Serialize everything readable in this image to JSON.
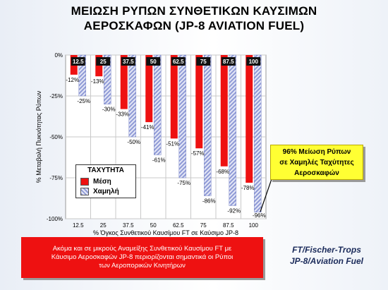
{
  "title": {
    "line1": "ΜΕΙΩΣΗ ΡΥΠΩΝ ΣΥΝΘΕΤΙΚΩΝ ΚΑΥΣΙΜΩΝ",
    "line2": "ΑΕΡΟΣΚΑΦΩΝ (JP-8 AVIATION FUEL)"
  },
  "chart_data": {
    "type": "bar",
    "categories": [
      "12.5",
      "25",
      "37.5",
      "50",
      "62.5",
      "75",
      "87.5",
      "100"
    ],
    "series": [
      {
        "name": "Μέση",
        "values": [
          -12,
          -13,
          -33,
          -41,
          -51,
          -57,
          -68,
          -78
        ],
        "labels": [
          "-12%",
          "-13%",
          "-33%",
          "-41%",
          "-51%",
          "-57%",
          "-68%",
          "-78%"
        ]
      },
      {
        "name": "Χαμηλή",
        "values": [
          -25,
          -30,
          -50,
          -61,
          -75,
          -86,
          -92,
          -96
        ],
        "labels": [
          "-25%",
          "-30%",
          "-50%",
          "-61%",
          "-75%",
          "-86%",
          "-92%",
          "-96%"
        ]
      }
    ],
    "top_labels": [
      "12.5",
      "25",
      "37.5",
      "50",
      "62.5",
      "75",
      "87.5",
      "100"
    ],
    "xlabel": "% Όγκος Συνθετικού Καυσίμου FT σε Καύσιμο JP-8",
    "ylabel": "% Μεταβολή Πυκνότητας Ρύπων",
    "ylim": [
      -100,
      0
    ],
    "yticks": [
      "0%",
      "-25%",
      "-50%",
      "-75%",
      "-100%"
    ],
    "ytick_values": [
      0,
      -25,
      -50,
      -75,
      -100
    ],
    "legend_title": "ΤΑΧΥΤΗΤΑ",
    "colors": {
      "Μέση": "#ee1111",
      "Χαμηλή": "#8f9ad6"
    }
  },
  "note": {
    "line1": "96% Μείωση Ρύπων",
    "line2": "σε Χαμηλές Ταχύτητες",
    "line3": "Αεροσκαφών"
  },
  "red_box": {
    "line1": "Ακόμα και σε μικρούς Αναμείξης Συνθετικού Καυσίμου FT με",
    "line2": "Κάυσιμο Αεροσκαφών JP-8 περιορίζονται σημαντικά οι Ρύποι",
    "line3": "των Αεροπορικών Κινητήρων"
  },
  "ft_label": {
    "line1": "FT/Fischer-Trops",
    "line2": "JP-8/Aviation Fuel"
  }
}
